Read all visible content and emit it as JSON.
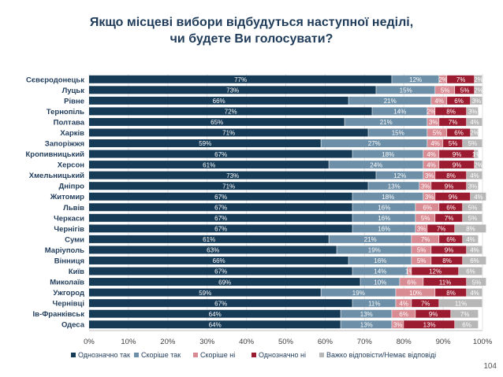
{
  "title_line1": "Якщо місцеві вибори відбудуться наступної неділі,",
  "title_line2": "чи будете Ви голосувати?",
  "page_number": "104",
  "colors": {
    "series": [
      "#163b57",
      "#6d8fa8",
      "#d98b93",
      "#9b1b30",
      "#b7b7b7"
    ],
    "title": "#1f3b5a"
  },
  "chart_data": {
    "type": "bar",
    "orientation": "horizontal",
    "stacked": true,
    "categories": [
      "Сєвєродонецьк",
      "Луцьк",
      "Рівне",
      "Тернопіль",
      "Полтава",
      "Харків",
      "Запоріжжя",
      "Кропивницький",
      "Херсон",
      "Хмельницький",
      "Дніпро",
      "Житомир",
      "Львів",
      "Черкаси",
      "Чернігів",
      "Суми",
      "Маріуполь",
      "Вінниця",
      "Київ",
      "Миколаїв",
      "Ужгород",
      "Чернівці",
      "Ів-Франківськ",
      "Одеса"
    ],
    "series": [
      {
        "name": "Однозначно так",
        "values": [
          77,
          73,
          66,
          72,
          65,
          71,
          59,
          67,
          61,
          73,
          71,
          67,
          67,
          67,
          67,
          61,
          63,
          66,
          67,
          69,
          59,
          67,
          64,
          64
        ]
      },
      {
        "name": "Скоріше так",
        "values": [
          12,
          15,
          21,
          14,
          21,
          15,
          27,
          18,
          24,
          12,
          13,
          18,
          16,
          16,
          16,
          21,
          19,
          16,
          14,
          10,
          19,
          11,
          13,
          13
        ]
      },
      {
        "name": "Скоріше ні",
        "values": [
          2,
          5,
          4,
          2,
          3,
          5,
          4,
          4,
          4,
          3,
          3,
          3,
          6,
          5,
          3,
          7,
          5,
          5,
          1,
          6,
          10,
          4,
          6,
          3
        ]
      },
      {
        "name": "Однозначно ні",
        "values": [
          7,
          5,
          6,
          8,
          7,
          6,
          5,
          9,
          9,
          8,
          9,
          9,
          6,
          7,
          7,
          6,
          9,
          8,
          12,
          11,
          8,
          7,
          9,
          13
        ]
      },
      {
        "name": "Важко відповісти/Немає відповіді",
        "values": [
          2,
          2,
          3,
          3,
          4,
          2,
          5,
          1,
          2,
          4,
          3,
          4,
          5,
          5,
          8,
          4,
          4,
          6,
          6,
          5,
          4,
          11,
          7,
          6
        ]
      }
    ],
    "xlim": [
      0,
      100
    ],
    "x_ticks": [
      "0%",
      "10%",
      "20%",
      "30%",
      "40%",
      "50%",
      "60%",
      "70%",
      "80%",
      "90%",
      "100%"
    ],
    "value_suffix": "%",
    "grid": true,
    "legend_position": "bottom"
  }
}
